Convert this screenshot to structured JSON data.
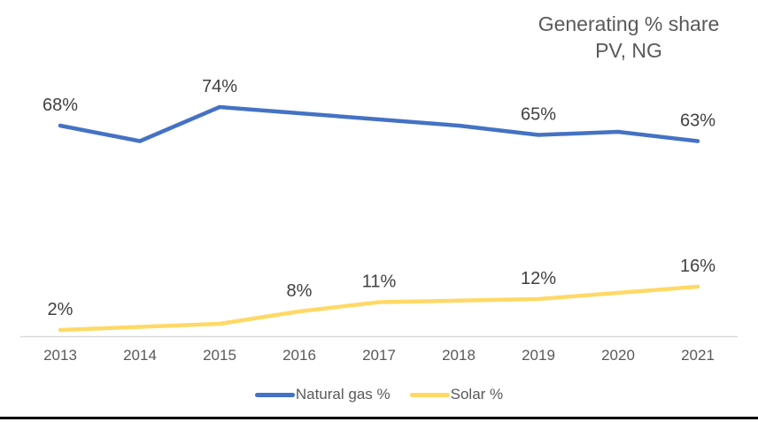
{
  "title": {
    "line1": "Generating % share",
    "line2": "PV, NG"
  },
  "colors": {
    "natural_gas": "#4472C4",
    "solar": "#FFD966",
    "axis_line": "#D9D9D9",
    "data_label_text": "#404040",
    "gray_text": "#595959",
    "bottom_bar": "#000000"
  },
  "chart_data": {
    "type": "line",
    "title": "Generating % share PV, NG",
    "categories": [
      "2013",
      "2014",
      "2015",
      "2016",
      "2017",
      "2018",
      "2019",
      "2020",
      "2021"
    ],
    "series": [
      {
        "name": "Natural gas %",
        "color": "#4472C4",
        "values": [
          68,
          63,
          74,
          72,
          70,
          68,
          65,
          66,
          63
        ],
        "data_labels": [
          "68%",
          null,
          "74%",
          null,
          null,
          null,
          "65%",
          null,
          "63%"
        ]
      },
      {
        "name": "Solar %",
        "color": "#FFD966",
        "values": [
          2,
          3,
          4,
          8,
          11,
          11.5,
          12,
          14,
          16
        ],
        "data_labels": [
          "2%",
          null,
          null,
          "8%",
          "11%",
          null,
          "12%",
          null,
          "16%"
        ]
      }
    ],
    "ylim": [
      0,
      80
    ],
    "grid": false,
    "legend_position": "bottom",
    "x_axis_line": true,
    "y_axis_visible": false
  }
}
